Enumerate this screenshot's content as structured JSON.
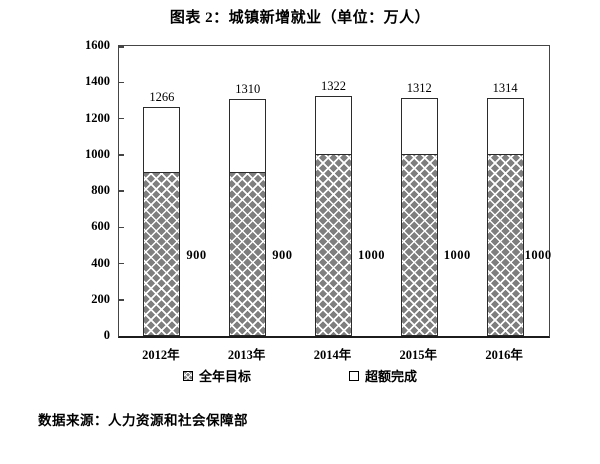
{
  "chart_data": {
    "type": "bar",
    "stacked": true,
    "title": "图表 2：城镇新增就业（单位：万人）",
    "categories": [
      "2012年",
      "2013年",
      "2014年",
      "2015年",
      "2016年"
    ],
    "series": [
      {
        "name": "全年目标",
        "values": [
          900,
          900,
          1000,
          1000,
          1000
        ],
        "style": "gray-diamond-hatch"
      },
      {
        "name": "超额完成",
        "values": [
          366,
          410,
          322,
          312,
          314
        ],
        "style": "white"
      }
    ],
    "totals": [
      1266,
      1310,
      1322,
      1312,
      1314
    ],
    "total_labels": [
      "1266",
      "1310",
      "1322",
      "1312",
      "1314"
    ],
    "target_labels": [
      "900",
      "900",
      "1000",
      "1000",
      "1000"
    ],
    "ylim": [
      0,
      1600
    ],
    "yticks": [
      0,
      200,
      400,
      600,
      800,
      1000,
      1200,
      1400,
      1600
    ],
    "xlabel": "",
    "ylabel": "",
    "grid": false,
    "legend_position": "bottom"
  },
  "footer": "数据来源：人力资源和社会保障部",
  "colors": {
    "bar_fill_gray": "#7f7f7f",
    "hatch_line": "#ffffff",
    "axis_line": "#454545",
    "text": "#000000",
    "background": "#ffffff"
  }
}
